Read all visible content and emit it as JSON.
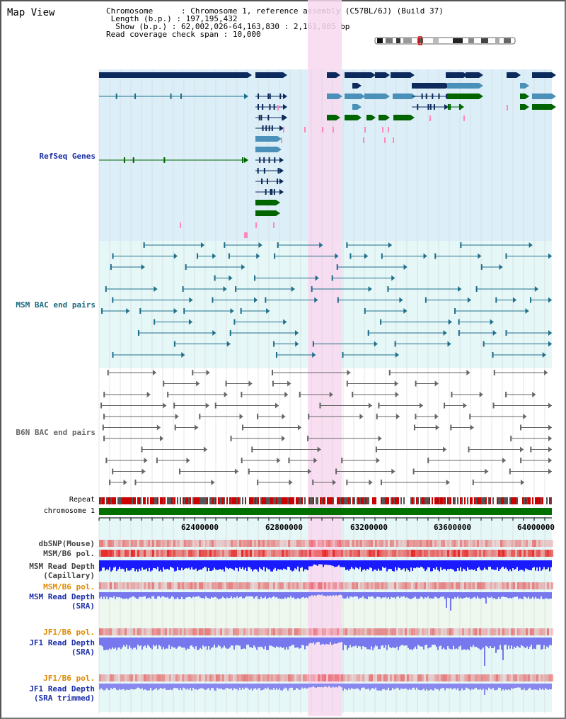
{
  "title": "Map View",
  "header": {
    "chromosome_key": "Chromosome",
    "chromosome_value": "Chromosome 1, reference assembly (C57BL/6J) (Build 37)",
    "length_key": "Length (b.p.)",
    "length_value": "197,195,432",
    "show_key": "Show (b.p.)",
    "show_value": "62,002,026-64,163,830 : 2,161,805 bp",
    "coverage_key": "Read coverage check span",
    "coverage_value": "10,000"
  },
  "tracks": {
    "refseq": "RefSeq Genes",
    "msm_bac": "MSM BAC end pairs",
    "b6n_bac": "B6N BAC end pairs",
    "repeat": "Repeat",
    "chromosome": "chromosome 1",
    "dbsnp": "dbSNP(Mouse)",
    "msm_b6_pol_1": "MSM/B6 pol.",
    "msm_depth_cap_1": "MSM Read Depth",
    "msm_depth_cap_2": "(Capillary)",
    "msm_b6_pol_2": "MSM/B6 pol.",
    "msm_depth_sra_1": "MSM Read Depth",
    "msm_depth_sra_2": "(SRA)",
    "jf1_b6_pol_1": "JF1/B6 pol.",
    "jf1_depth_sra_1": "JF1 Read Depth",
    "jf1_depth_sra_2": "(SRA)",
    "jf1_b6_pol_2": "JF1/B6 pol.",
    "jf1_depth_trim_1": "JF1 Read Depth",
    "jf1_depth_trim_2": "(SRA trimmed)"
  },
  "axis": {
    "ticks": [
      "62400000",
      "62800000",
      "63200000",
      "63600000",
      "64000000"
    ]
  },
  "colors": {
    "refseq_bg": "#dceff8",
    "bac_bg": "#e6f7f7",
    "highlight": "#f8d8f0",
    "gene_dark": "#0d2a5c",
    "gene_mid": "#4a90b8",
    "gene_green": "#006400",
    "msm_bac": "#1f6f8b",
    "b6n_bac": "#666666",
    "chrom_band": "#007000",
    "depth_capillary": "#1a1aff",
    "depth_sra": "#7777ee",
    "pol_red": "#ee4444",
    "label_blue": "#1a2ea8",
    "label_teal": "#1a6a80",
    "label_orange": "#e08a00"
  }
}
